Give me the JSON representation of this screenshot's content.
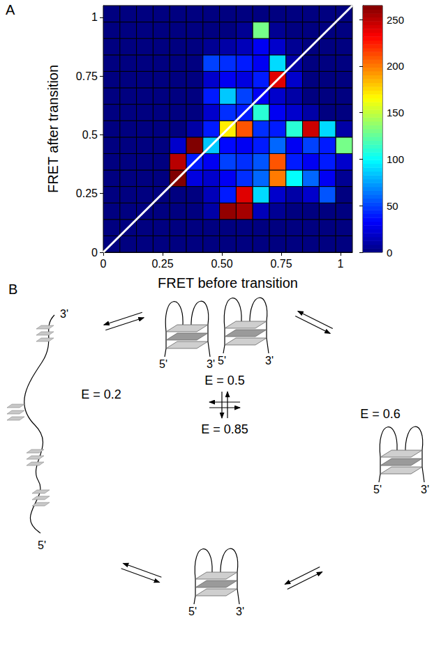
{
  "chart_data": {
    "type": "heatmap",
    "panel_label": "A",
    "x_label": "FRET before transition",
    "y_label": "FRET after transition",
    "xlim": [
      0,
      1.05
    ],
    "ylim": [
      0,
      1.05
    ],
    "xticks": [
      0,
      0.25,
      {
        "value": 0.5,
        "label": "0.50"
      },
      0.75,
      1
    ],
    "yticks": [
      0,
      0.25,
      0.5,
      0.75,
      1
    ],
    "x_bins": [
      0,
      0.07,
      0.14,
      0.21,
      0.28,
      0.35,
      0.42,
      0.49,
      0.56,
      0.63,
      0.7,
      0.77,
      0.84,
      0.91,
      0.98,
      1.05
    ],
    "y_bins": [
      0,
      0.07,
      0.14,
      0.21,
      0.28,
      0.35,
      0.42,
      0.49,
      0.56,
      0.63,
      0.7,
      0.77,
      0.84,
      0.91,
      0.98,
      1.05
    ],
    "counts": [
      [
        0,
        0,
        0,
        0,
        0,
        0,
        0,
        0,
        0,
        0,
        0,
        0,
        0,
        0,
        0
      ],
      [
        0,
        0,
        0,
        0,
        0,
        0,
        0,
        0,
        0,
        0,
        0,
        0,
        0,
        0,
        0
      ],
      [
        0,
        0,
        0,
        0,
        0,
        0,
        10,
        260,
        255,
        15,
        5,
        0,
        0,
        0,
        0
      ],
      [
        0,
        0,
        0,
        0,
        0,
        0,
        15,
        40,
        240,
        90,
        20,
        10,
        20,
        55,
        0
      ],
      [
        0,
        0,
        0,
        0,
        265,
        25,
        20,
        30,
        45,
        60,
        200,
        100,
        60,
        30,
        5
      ],
      [
        0,
        0,
        0,
        0,
        250,
        40,
        30,
        50,
        45,
        55,
        210,
        40,
        30,
        40,
        20
      ],
      [
        0,
        0,
        0,
        0,
        20,
        265,
        85,
        35,
        30,
        40,
        60,
        30,
        50,
        40,
        130
      ],
      [
        0,
        0,
        0,
        0,
        0,
        10,
        40,
        170,
        210,
        45,
        40,
        110,
        245,
        90,
        10
      ],
      [
        0,
        0,
        0,
        0,
        0,
        0,
        20,
        45,
        40,
        110,
        30,
        20,
        10,
        0,
        0
      ],
      [
        0,
        0,
        0,
        0,
        0,
        0,
        40,
        85,
        50,
        30,
        20,
        10,
        0,
        0,
        0
      ],
      [
        0,
        0,
        0,
        0,
        0,
        0,
        20,
        30,
        25,
        40,
        240,
        20,
        0,
        0,
        0
      ],
      [
        0,
        0,
        0,
        0,
        0,
        0,
        50,
        45,
        40,
        30,
        90,
        10,
        0,
        0,
        0
      ],
      [
        0,
        0,
        0,
        0,
        0,
        0,
        5,
        10,
        15,
        30,
        20,
        5,
        0,
        0,
        0
      ],
      [
        0,
        0,
        0,
        0,
        0,
        0,
        0,
        0,
        5,
        130,
        5,
        0,
        0,
        0,
        0
      ],
      [
        0,
        0,
        0,
        0,
        0,
        0,
        0,
        0,
        0,
        0,
        0,
        0,
        0,
        0,
        0
      ]
    ],
    "color_range": [
      0,
      265
    ],
    "color_ticks": [
      0,
      50,
      100,
      150,
      200,
      250
    ]
  },
  "diagram": {
    "panel_label": "B",
    "states": [
      {
        "label": "E = 0.2",
        "structures": [
          {
            "ends": [
              "5'",
              "3'"
            ]
          }
        ]
      },
      {
        "label": "E = 0.5",
        "structures": [
          {
            "ends": [
              "5'",
              "3'"
            ]
          },
          {
            "ends": [
              "5'",
              "3'"
            ]
          }
        ]
      },
      {
        "label": "E = 0.6",
        "structures": [
          {
            "ends": [
              "5'",
              "3'"
            ]
          }
        ]
      },
      {
        "label": "E = 0.85",
        "structures": [
          {
            "ends": [
              "5'",
              "3'"
            ]
          }
        ]
      }
    ]
  }
}
